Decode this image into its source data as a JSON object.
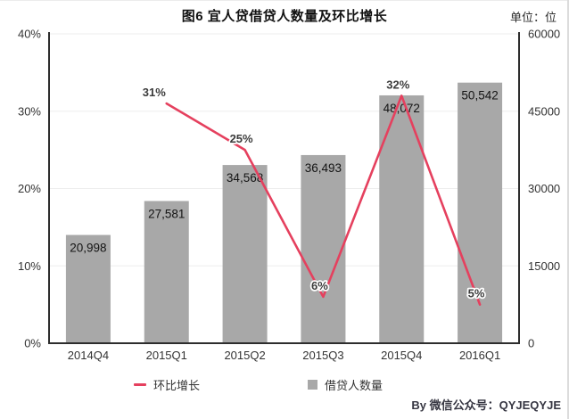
{
  "chart_data": {
    "type": "combo",
    "title": "图6  宜人贷借贷人数量及环比增长",
    "unit_label": "单位：位",
    "categories": [
      "2014Q4",
      "2015Q1",
      "2015Q2",
      "2015Q3",
      "2015Q4",
      "2016Q1"
    ],
    "series": [
      {
        "name": "环比增长",
        "type": "line",
        "axis": "left",
        "color": "#e5405e",
        "values": [
          null,
          31,
          25,
          6,
          32,
          5
        ],
        "labels": [
          null,
          "31%",
          "25%",
          "6%",
          "32%",
          "5%"
        ]
      },
      {
        "name": "借贷人数量",
        "type": "bar",
        "axis": "right",
        "color": "#a8a8a8",
        "values": [
          20998,
          27581,
          34568,
          36493,
          48072,
          50542
        ],
        "labels": [
          "20,998",
          "27,581",
          "34,568",
          "36,493",
          "48,072",
          "50,542"
        ]
      }
    ],
    "left_axis": {
      "min": 0,
      "max": 40,
      "ticks": [
        "0%",
        "10%",
        "20%",
        "30%",
        "40%"
      ]
    },
    "right_axis": {
      "min": 0,
      "max": 60000,
      "ticks": [
        "0",
        "15000",
        "30000",
        "45000",
        "60000"
      ]
    },
    "grid": true,
    "legend_position": "bottom"
  },
  "footer": {
    "credit": "By  微信公众号：QYJEQYJE"
  }
}
